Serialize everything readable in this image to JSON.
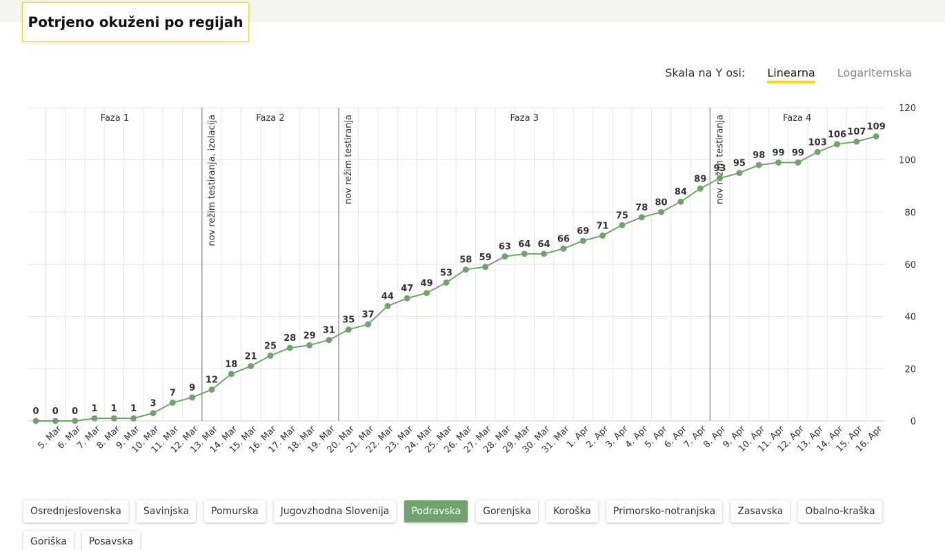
{
  "chart_data": {
    "type": "line",
    "title": "Potrjeno okuženi po regijah",
    "categories": [
      null,
      "5. Mar",
      "6. Mar",
      "7. Mar",
      "8. Mar",
      "9. Mar",
      "10. Mar",
      "11. Mar",
      "12. Mar",
      "13. Mar",
      "14. Mar",
      "15. Mar",
      "16. Mar",
      "17. Mar",
      "18. Mar",
      "19. Mar",
      "20. Mar",
      "21. Mar",
      "22. Mar",
      "23. Mar",
      "24. Mar",
      "25. Mar",
      "26. Mar",
      "27. Mar",
      "28. Mar",
      "29. Mar",
      "30. Mar",
      "31. Mar",
      "1. Apr",
      "2. Apr",
      "3. Apr",
      "4. Apr",
      "5. Apr",
      "6. Apr",
      "7. Apr",
      "8. Apr",
      "9. Apr",
      "10. Apr",
      "11. Apr",
      "12. Apr",
      "13. Apr",
      "14. Apr",
      "15. Apr",
      "16. Apr"
    ],
    "series": [
      {
        "name": "Podravska",
        "color": "#72a36e",
        "values": [
          0,
          0,
          0,
          1,
          1,
          1,
          3,
          7,
          9,
          12,
          18,
          21,
          25,
          28,
          29,
          31,
          35,
          37,
          44,
          47,
          49,
          53,
          58,
          59,
          63,
          64,
          64,
          66,
          69,
          71,
          75,
          78,
          80,
          84,
          89,
          93,
          95,
          98,
          99,
          99,
          103,
          106,
          107,
          109
        ]
      }
    ],
    "ylim": [
      0,
      120
    ],
    "yticks": [
      0,
      20,
      40,
      60,
      80,
      100,
      120
    ],
    "grid": true,
    "annotations": [
      {
        "text": "nov režim testiranja, izolacija",
        "before": "13. Mar"
      },
      {
        "text": "nov režim testiranja",
        "before": "20. Mar"
      },
      {
        "text": "nov režim testiranja",
        "before": "8. Apr"
      }
    ],
    "phases": [
      "Faza 1",
      "Faza 2",
      "Faza 3",
      "Faza 4"
    ]
  },
  "scale": {
    "label": "Skala na Y osi:",
    "options": [
      "Linearna",
      "Logaritemska"
    ],
    "selected": "Linearna"
  },
  "regions": {
    "items": [
      "Osrednjeslovenska",
      "Savinjska",
      "Pomurska",
      "Jugovzhodna Slovenija",
      "Podravska",
      "Gorenjska",
      "Koroška",
      "Primorsko-notranjska",
      "Zasavska",
      "Obalno-kraška",
      "Goriška",
      "Posavska"
    ],
    "selected": "Podravska"
  }
}
